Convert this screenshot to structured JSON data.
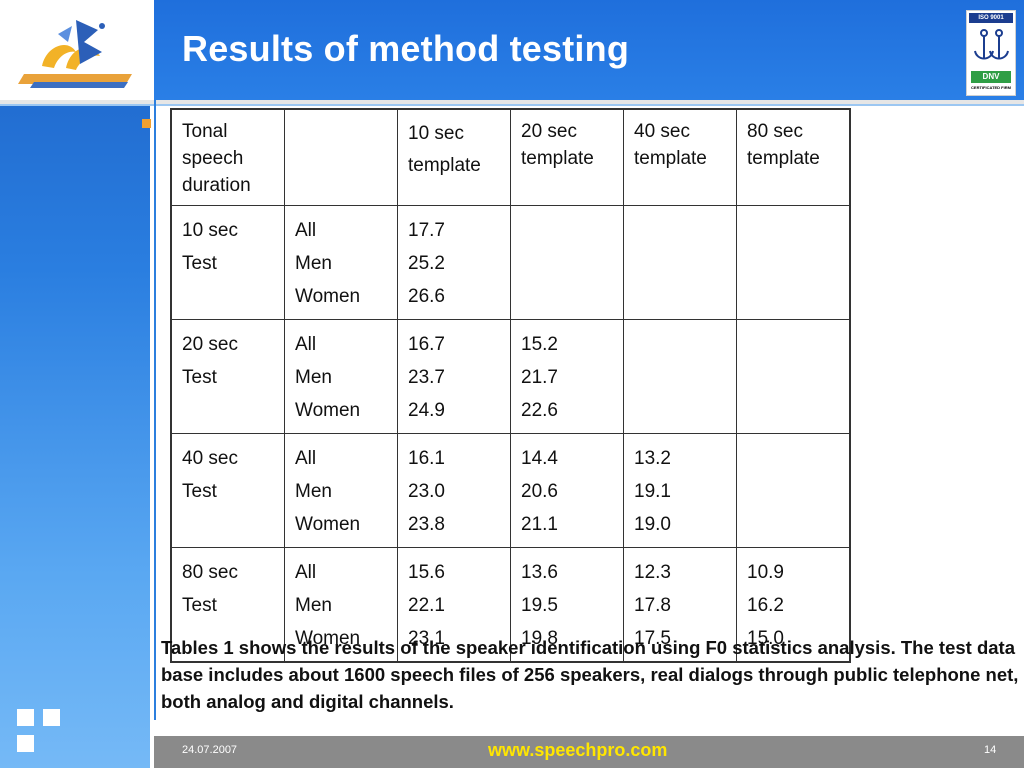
{
  "slide": {
    "title": "Results of method testing",
    "description": "Tables 1 shows the results of the speaker identification using F0 statistics analysis. The test data base includes about 1600 speech files of  256 speakers, real dialogs through public telephone net,  both analog and digital channels.",
    "footer": {
      "date": "24.07.2007",
      "url": "www.speechpro.com",
      "page": "14"
    },
    "badge": {
      "iso": "ISO 9001",
      "dnv": "DNV",
      "cert": "CERTIFICATED FIRM"
    }
  },
  "table": {
    "header": [
      [
        "Tonal",
        "speech",
        "duration"
      ],
      [],
      [
        "10 sec",
        "template"
      ],
      [
        "20 sec",
        "template"
      ],
      [
        "40 sec",
        "template"
      ],
      [
        "80 sec",
        "template"
      ]
    ],
    "rows": [
      {
        "test": [
          "10 sec",
          "Test"
        ],
        "groups": [
          "All",
          "Men",
          "Women"
        ],
        "cols": [
          [
            "17.7",
            "25.2",
            "26.6"
          ],
          [],
          [],
          []
        ]
      },
      {
        "test": [
          "20 sec",
          "Test"
        ],
        "groups": [
          "All",
          "Men",
          "Women"
        ],
        "cols": [
          [
            "16.7",
            "23.7",
            "24.9"
          ],
          [
            "15.2",
            "21.7",
            "22.6"
          ],
          [],
          []
        ]
      },
      {
        "test": [
          "40 sec",
          "Test"
        ],
        "groups": [
          "All",
          "Men",
          "Women"
        ],
        "cols": [
          [
            "16.1",
            "23.0",
            "23.8"
          ],
          [
            "14.4",
            "20.6",
            "21.1"
          ],
          [
            "13.2",
            "19.1",
            "19.0"
          ],
          []
        ]
      },
      {
        "test": [
          "80 sec",
          "Test"
        ],
        "groups": [
          "All",
          "Men",
          "Women"
        ],
        "cols": [
          [
            "15.6",
            "22.1",
            "23.1"
          ],
          [
            "13.6",
            "19.5",
            "19.8"
          ],
          [
            "12.3",
            "17.8",
            "17.5"
          ],
          [
            "10.9",
            "16.2",
            "15.0"
          ]
        ]
      }
    ]
  },
  "colors": {
    "header_blue": "#1f6fdc",
    "bullet_orange": "#f0a030",
    "footer_gray": "#8a8a8a",
    "url_yellow": "#ffe600"
  },
  "icons": [
    "company-logo-icon",
    "iso-anchor-icon",
    "decorative-squares-icon"
  ]
}
